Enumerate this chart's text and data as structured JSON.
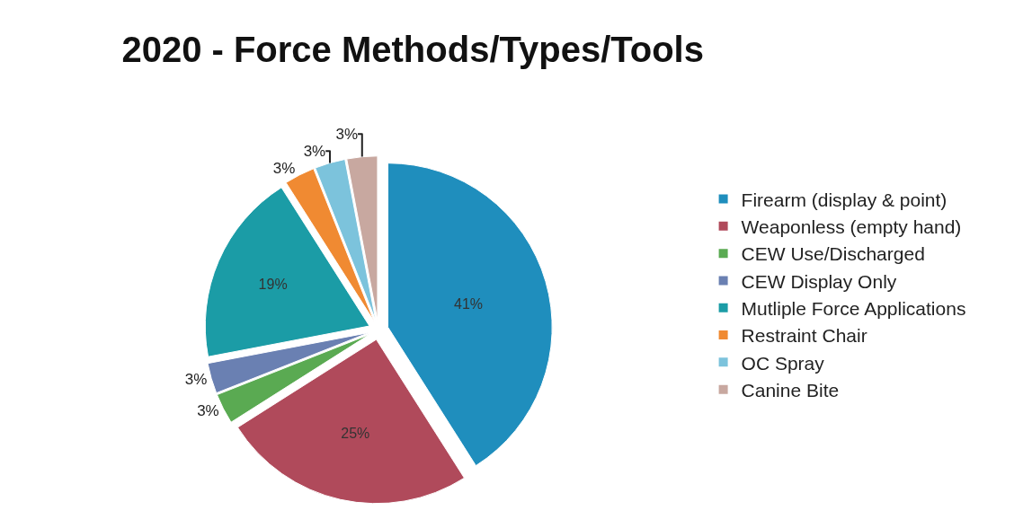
{
  "chart_data": {
    "type": "pie",
    "title": "2020 - Force Methods/Types/Tools",
    "categories": [
      "Firearm (display & point)",
      "Weaponless (empty hand)",
      "CEW Use/Discharged",
      "CEW Display Only",
      "Mutliple Force Applications",
      "Restraint Chair",
      "OC Spray",
      "Canine Bite"
    ],
    "values": [
      41,
      25,
      3,
      3,
      19,
      3,
      3,
      3
    ],
    "value_labels": [
      "41%",
      "25%",
      "3%",
      "3%",
      "19%",
      "3%",
      "3%",
      "3%"
    ],
    "colors": [
      "#1f8ebd",
      "#b04a5b",
      "#5aaa52",
      "#6a80b2",
      "#1b9ca6",
      "#f08a32",
      "#7cc3dc",
      "#c8a8a0"
    ],
    "legend": "right"
  }
}
